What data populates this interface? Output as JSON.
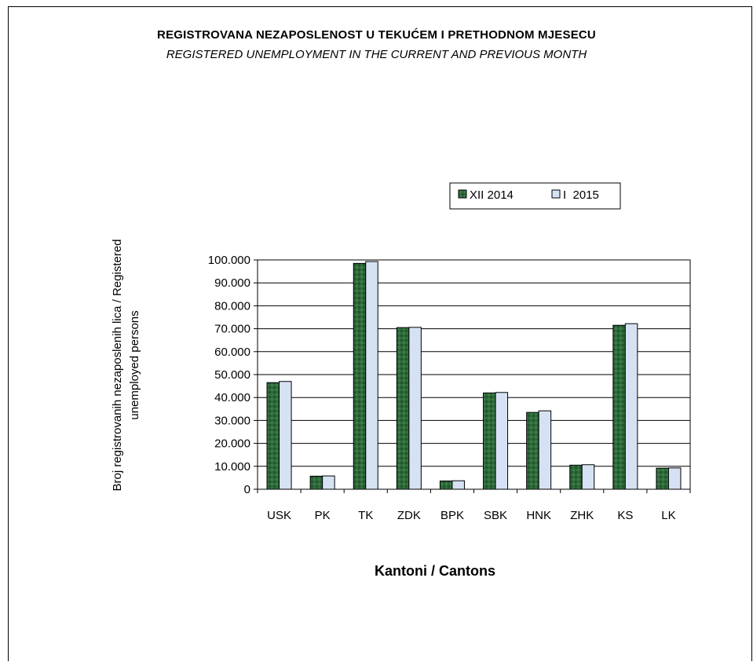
{
  "chart_data": {
    "type": "bar",
    "title": "REGISTROVANA NEZAPOSLENOST U TEKUĆEM I PRETHODNOM   MJESECU",
    "subtitle": "REGISTERED UNEMPLOYMENT IN THE CURRENT AND PREVIOUS MONTH",
    "xlabel": "Kantoni / Cantons",
    "ylabel_line1": "Broj registrovanih nezaposlenih lica / Registered",
    "ylabel_line2": "unemployed persons",
    "categories": [
      "USK",
      "PK",
      "TK",
      "ZDK",
      "BPK",
      "SBK",
      "HNK",
      "ZHK",
      "KS",
      "LK"
    ],
    "series": [
      {
        "name": "XII 2014",
        "values": [
          46500,
          5700,
          98500,
          70500,
          3600,
          42000,
          33500,
          10500,
          71500,
          9200
        ]
      },
      {
        "name": "I  2015",
        "values": [
          47000,
          5800,
          99300,
          70600,
          3700,
          42200,
          34200,
          10700,
          72200,
          9300
        ]
      }
    ],
    "ylim": [
      0,
      100000
    ],
    "yticks": [
      "0",
      "10.000",
      "20.000",
      "30.000",
      "40.000",
      "50.000",
      "60.000",
      "70.000",
      "80.000",
      "90.000",
      "100.000"
    ],
    "grid": true,
    "legend_position": "top-right",
    "colors": {
      "series1": "#2e6b3a",
      "series2": "#d6e2f4"
    }
  }
}
